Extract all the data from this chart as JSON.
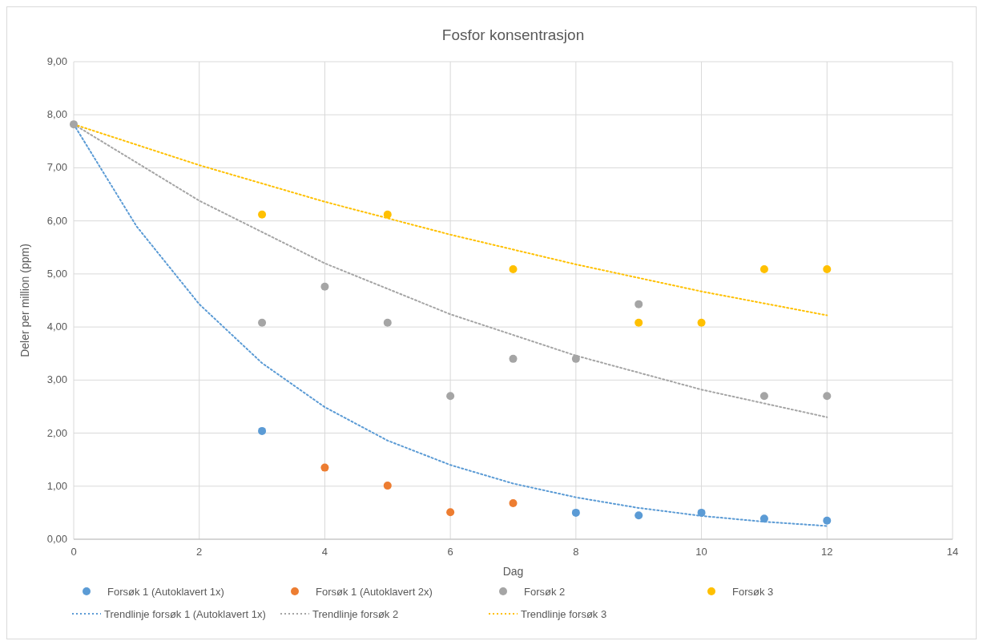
{
  "chart_data": {
    "type": "scatter",
    "title": "Fosfor konsentrasjon",
    "xlabel": "Dag",
    "ylabel": "Deler per million (ppm)",
    "xlim": [
      0,
      14
    ],
    "xticks": [
      0,
      2,
      4,
      6,
      8,
      10,
      12,
      14
    ],
    "ylim": [
      0,
      9
    ],
    "yticks": [
      {
        "value": 0,
        "label": "0,00"
      },
      {
        "value": 1,
        "label": "1,00"
      },
      {
        "value": 2,
        "label": "2,00"
      },
      {
        "value": 3,
        "label": "3,00"
      },
      {
        "value": 4,
        "label": "4,00"
      },
      {
        "value": 5,
        "label": "5,00"
      },
      {
        "value": 6,
        "label": "6,00"
      },
      {
        "value": 7,
        "label": "7,00"
      },
      {
        "value": 8,
        "label": "8,00"
      },
      {
        "value": 9,
        "label": "9,00"
      }
    ],
    "grid": true,
    "legend": "bottom",
    "marker": "circle",
    "series": [
      {
        "name": "Forsøk 1 (Autoklavert 1x)",
        "color": "#5b9bd5",
        "x": [
          3,
          8,
          9,
          10,
          11,
          12
        ],
        "values": [
          2.04,
          0.5,
          0.45,
          0.5,
          0.39,
          0.35
        ]
      },
      {
        "name": "Forsøk 1 (Autoklavert 2x)",
        "color": "#ed7d31",
        "x": [
          4,
          5,
          6,
          7
        ],
        "values": [
          1.35,
          1.01,
          0.51,
          0.68
        ]
      },
      {
        "name": "Forsøk 2",
        "color": "#a5a5a5",
        "x": [
          0,
          3,
          4,
          5,
          6,
          7,
          8,
          9,
          11,
          12
        ],
        "values": [
          7.82,
          4.08,
          4.76,
          4.08,
          2.7,
          3.4,
          3.4,
          4.43,
          2.7,
          2.7
        ]
      },
      {
        "name": "Forsøk 3",
        "color": "#ffc000",
        "x": [
          3,
          5,
          7,
          9,
          10,
          11,
          12
        ],
        "values": [
          6.12,
          6.12,
          5.09,
          4.08,
          4.08,
          5.09,
          5.09
        ]
      },
      {
        "name": "Trendlinje forsøk 1 (Autoklavert 1x)",
        "type": "line",
        "line_style": "dotted",
        "marker": "none",
        "color": "#5b9bd5",
        "x": [
          0,
          1,
          2,
          3,
          4,
          5,
          6,
          7,
          8,
          9,
          10,
          11,
          12
        ],
        "values": [
          7.82,
          5.9,
          4.43,
          3.32,
          2.49,
          1.86,
          1.4,
          1.05,
          0.79,
          0.59,
          0.44,
          0.33,
          0.25
        ]
      },
      {
        "name": "Trendlinje forsøk 2",
        "type": "line",
        "line_style": "dotted",
        "marker": "none",
        "color": "#a5a5a5",
        "x": [
          0,
          2,
          4,
          6,
          8,
          10,
          12
        ],
        "values": [
          7.82,
          6.38,
          5.2,
          4.24,
          3.46,
          2.82,
          2.3
        ]
      },
      {
        "name": "Trendlinje forsøk 3",
        "type": "line",
        "line_style": "dotted",
        "marker": "none",
        "color": "#ffc000",
        "x": [
          0,
          2,
          4,
          6,
          8,
          10,
          12
        ],
        "values": [
          7.82,
          7.05,
          6.36,
          5.74,
          5.18,
          4.67,
          4.22
        ]
      }
    ]
  }
}
